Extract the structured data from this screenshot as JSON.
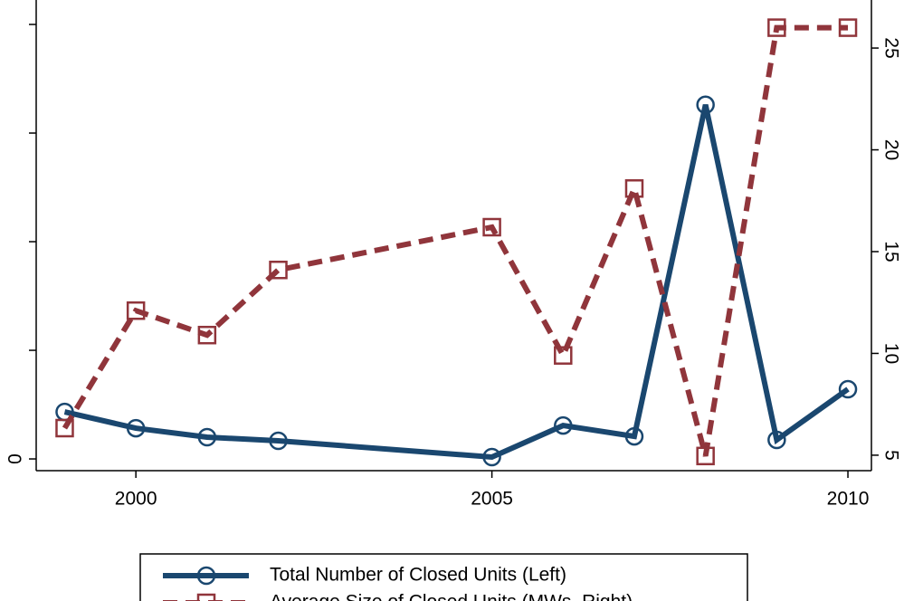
{
  "chart_data": {
    "type": "line",
    "x": [
      1999,
      2000,
      2001,
      2002,
      2005,
      2006,
      2007,
      2008,
      2009,
      2010
    ],
    "xlim": [
      1998.6,
      2010.33
    ],
    "xticks": [
      2000,
      2005,
      2010
    ],
    "ylim": [
      -1.08,
      42.25
    ],
    "yticks": [
      0
    ],
    "ytick_marks": [
      10,
      20,
      30,
      40
    ],
    "y2lim": [
      4.24,
      27.36
    ],
    "y2ticks": [
      5,
      10,
      15,
      20,
      25
    ],
    "grid": false,
    "legend": "bottom",
    "series": [
      {
        "name": "Total Number of Closed Units (Left)",
        "color": "#1a476f",
        "marker": "circle",
        "dash": "solid",
        "values": [
          4.33,
          2.83,
          2.0,
          1.67,
          0.17,
          3.08,
          2.08,
          32.6,
          1.75,
          6.42
        ]
      },
      {
        "name": "Average Size of Closed Units (MWs, Right)",
        "color": "#90353b",
        "marker": "square",
        "dash": "dashed",
        "axis": "y2",
        "values": [
          6.33,
          12.1,
          10.9,
          14.1,
          16.2,
          9.9,
          18.1,
          4.96,
          26.0,
          26.0
        ]
      }
    ]
  }
}
